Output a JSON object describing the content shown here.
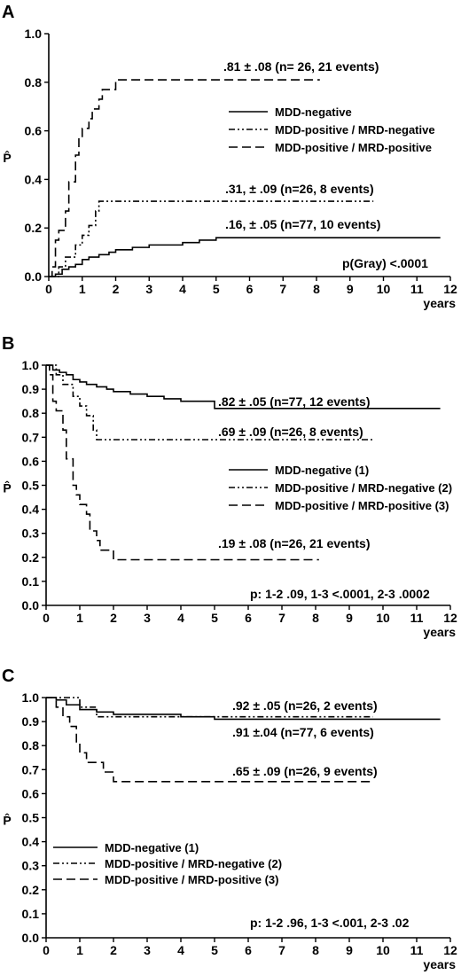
{
  "chart_data": [
    {
      "type": "line",
      "panel_label": "A",
      "ylabel": "P̂",
      "xlabel": "years",
      "xlim": [
        0,
        12
      ],
      "ylim": [
        0,
        1.0
      ],
      "xticks": [
        "0",
        "1",
        "2",
        "3",
        "4",
        "5",
        "6",
        "7",
        "8",
        "9",
        "10",
        "11",
        "12"
      ],
      "yticks": [
        "0.0",
        "0.2",
        "0.4",
        "0.6",
        "0.8",
        "1.0"
      ],
      "legend": [
        "MDD-negative",
        "MDD-positive / MRD-negative",
        "MDD-positive / MRD-positive"
      ],
      "series": [
        {
          "name": "MDD-negative",
          "dash": "solid",
          "x": [
            0,
            0.2,
            0.4,
            0.6,
            0.8,
            1.0,
            1.2,
            1.5,
            1.8,
            2.0,
            2.5,
            3.0,
            4.0,
            4.5,
            5.0,
            11.7
          ],
          "y": [
            0,
            0.01,
            0.03,
            0.04,
            0.05,
            0.07,
            0.08,
            0.09,
            0.1,
            0.11,
            0.12,
            0.13,
            0.14,
            0.15,
            0.16,
            0.16
          ]
        },
        {
          "name": "MDD-positive / MRD-negative",
          "dash": "dashdotdot",
          "x": [
            0,
            0.3,
            0.5,
            0.8,
            1.0,
            1.2,
            1.4,
            1.5,
            9.7
          ],
          "y": [
            0,
            0.04,
            0.08,
            0.13,
            0.17,
            0.21,
            0.27,
            0.31,
            0.31
          ]
        },
        {
          "name": "MDD-positive / MRD-positive",
          "dash": "dash",
          "x": [
            0,
            0.1,
            0.2,
            0.3,
            0.5,
            0.6,
            0.8,
            0.9,
            1.0,
            1.2,
            1.3,
            1.5,
            1.6,
            1.8,
            2.0,
            8.1
          ],
          "y": [
            0,
            0.04,
            0.15,
            0.19,
            0.27,
            0.39,
            0.5,
            0.57,
            0.61,
            0.65,
            0.69,
            0.73,
            0.77,
            0.77,
            0.81,
            0.81
          ]
        }
      ],
      "annotations": [
        {
          "text": ".81 ± .08  (n= 26, 21 events)"
        },
        {
          "text": ".31, ± .09  (n=26, 8 events)"
        },
        {
          "text": ".16, ± .05  (n=77, 10 events)"
        },
        {
          "text": "p(Gray) <.0001"
        }
      ]
    },
    {
      "type": "line",
      "panel_label": "B",
      "ylabel": "P̂",
      "xlabel": "years",
      "xlim": [
        0,
        12
      ],
      "ylim": [
        0,
        1.0
      ],
      "xticks": [
        "0",
        "1",
        "2",
        "3",
        "4",
        "5",
        "6",
        "7",
        "8",
        "9",
        "10",
        "11",
        "12"
      ],
      "yticks": [
        "0.0",
        "0.1",
        "0.2",
        "0.3",
        "0.4",
        "0.5",
        "0.6",
        "0.7",
        "0.8",
        "0.9",
        "1.0"
      ],
      "legend": [
        "MDD-negative (1)",
        "MDD-positive / MRD-negative (2)",
        "MDD-positive / MRD-positive (3)"
      ],
      "series": [
        {
          "name": "MDD-negative (1)",
          "dash": "solid",
          "x": [
            0,
            0.2,
            0.4,
            0.6,
            0.8,
            1.0,
            1.2,
            1.5,
            1.8,
            2.0,
            2.5,
            3.0,
            3.5,
            4.0,
            4.5,
            5.0,
            11.7
          ],
          "y": [
            1.0,
            0.98,
            0.97,
            0.96,
            0.94,
            0.93,
            0.92,
            0.91,
            0.9,
            0.89,
            0.88,
            0.87,
            0.86,
            0.85,
            0.85,
            0.82,
            0.82
          ]
        },
        {
          "name": "MDD-positive / MRD-negative (2)",
          "dash": "dashdotdot",
          "x": [
            0,
            0.3,
            0.5,
            0.8,
            1.0,
            1.2,
            1.4,
            1.5,
            9.7
          ],
          "y": [
            1.0,
            0.96,
            0.92,
            0.87,
            0.83,
            0.79,
            0.73,
            0.69,
            0.69
          ]
        },
        {
          "name": "MDD-positive / MRD-positive (3)",
          "dash": "dash",
          "x": [
            0,
            0.1,
            0.2,
            0.3,
            0.5,
            0.6,
            0.8,
            0.9,
            1.0,
            1.2,
            1.3,
            1.5,
            1.6,
            1.8,
            2.0,
            8.1
          ],
          "y": [
            1.0,
            0.96,
            0.85,
            0.81,
            0.73,
            0.61,
            0.5,
            0.46,
            0.42,
            0.38,
            0.31,
            0.27,
            0.23,
            0.23,
            0.19,
            0.19
          ]
        }
      ],
      "annotations": [
        {
          "text": ".82 ± .05 (n=77, 12 events)"
        },
        {
          "text": ".69 ± .09  (n=26, 8 events)"
        },
        {
          "text": ".19 ± .08  (n=26, 21 events)"
        },
        {
          "text": "p: 1-2 .09, 1-3 <.0001, 2-3 .0002"
        }
      ]
    },
    {
      "type": "line",
      "panel_label": "C",
      "ylabel": "P̂",
      "xlabel": "years",
      "xlim": [
        0,
        12
      ],
      "ylim": [
        0,
        1.0
      ],
      "xticks": [
        "0",
        "1",
        "2",
        "3",
        "4",
        "5",
        "6",
        "7",
        "8",
        "9",
        "10",
        "11",
        "12"
      ],
      "yticks": [
        "0.0",
        "0.1",
        "0.2",
        "0.3",
        "0.4",
        "0.5",
        "0.6",
        "0.7",
        "0.8",
        "0.9",
        "1.0"
      ],
      "legend": [
        "MDD-negative (1)",
        "MDD-positive / MRD-negative (2)",
        "MDD-positive / MRD-positive (3)"
      ],
      "series": [
        {
          "name": "MDD-negative (1)",
          "dash": "solid",
          "x": [
            0,
            0.3,
            0.6,
            1.0,
            1.5,
            2.0,
            3.0,
            4.0,
            5.0,
            11.7
          ],
          "y": [
            1.0,
            0.99,
            0.97,
            0.95,
            0.94,
            0.93,
            0.93,
            0.92,
            0.91,
            0.91
          ]
        },
        {
          "name": "MDD-positive / MRD-negative (2)",
          "dash": "dashdotdot",
          "x": [
            0,
            0.5,
            1.0,
            1.2,
            1.5,
            9.7
          ],
          "y": [
            1.0,
            1.0,
            0.96,
            0.96,
            0.92,
            0.92
          ]
        },
        {
          "name": "MDD-positive / MRD-positive (3)",
          "dash": "dash",
          "x": [
            0,
            0.3,
            0.5,
            0.7,
            0.9,
            1.0,
            1.2,
            1.5,
            1.7,
            2.0,
            9.7
          ],
          "y": [
            1.0,
            0.96,
            0.92,
            0.88,
            0.81,
            0.77,
            0.73,
            0.73,
            0.69,
            0.65,
            0.65
          ]
        }
      ],
      "annotations": [
        {
          "text": ".92 ± .05  (n=26, 2 events)"
        },
        {
          "text": ".91 ±.04  (n=77, 6 events)"
        },
        {
          "text": ".65 ± .09  (n=26, 9 events)"
        },
        {
          "text": "p: 1-2 .96, 1-3 <.001, 2-3 .02"
        }
      ]
    }
  ]
}
